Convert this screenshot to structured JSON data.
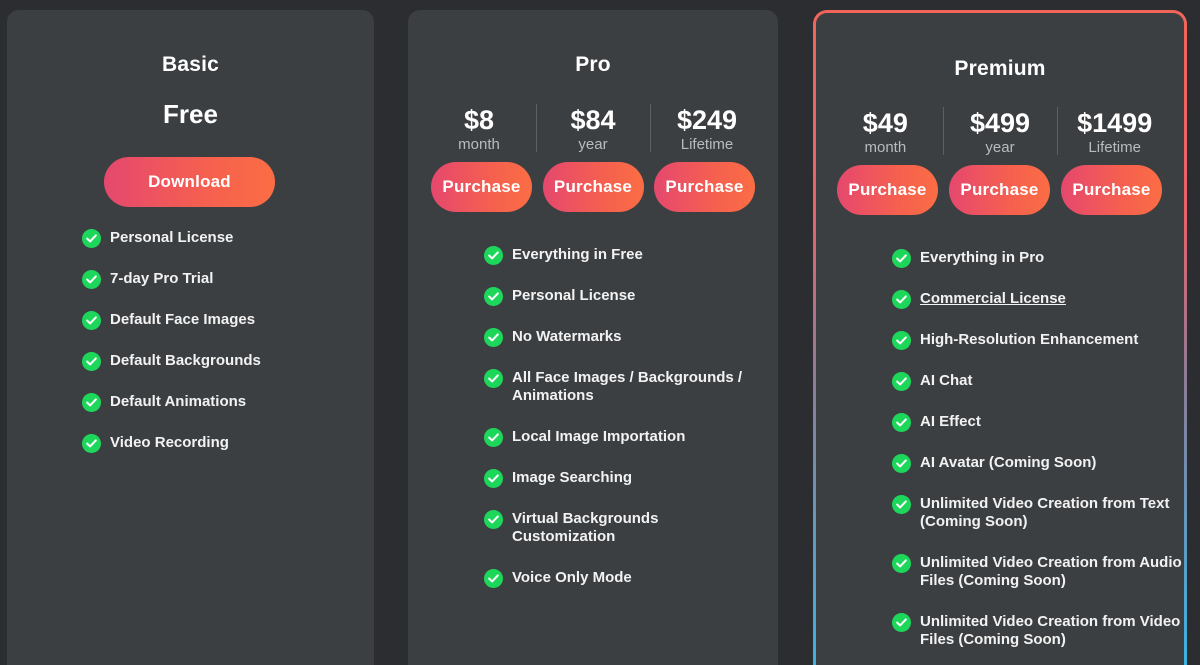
{
  "basic": {
    "title": "Basic",
    "price": "Free",
    "download_label": "Download",
    "features": [
      "Personal License",
      "7-day Pro Trial",
      "Default Face Images",
      "Default Backgrounds",
      "Default Animations",
      "Video Recording"
    ]
  },
  "pro": {
    "title": "Pro",
    "prices": [
      {
        "amount": "$8",
        "period": "month"
      },
      {
        "amount": "$84",
        "period": "year"
      },
      {
        "amount": "$249",
        "period": "Lifetime"
      }
    ],
    "purchase_label": "Purchase",
    "features": [
      "Everything in Free",
      "Personal License",
      "No Watermarks",
      "All Face Images / Backgrounds / Animations",
      "Local Image Importation",
      "Image Searching",
      "Virtual Backgrounds Customization",
      "Voice Only Mode"
    ]
  },
  "premium": {
    "title": "Premium",
    "prices": [
      {
        "amount": "$49",
        "period": "month"
      },
      {
        "amount": "$499",
        "period": "year"
      },
      {
        "amount": "$1499",
        "period": "Lifetime"
      }
    ],
    "purchase_label": "Purchase",
    "features": [
      "Everything in Pro",
      "Commercial License",
      "High-Resolution Enhancement",
      "AI Chat",
      "AI Effect",
      "AI Avatar (Coming Soon)",
      "Unlimited Video Creation from Text (Coming Soon)",
      "Unlimited Video Creation from Audio Files (Coming Soon)",
      "Unlimited Video Creation from Video Files (Coming Soon)"
    ]
  },
  "colors": {
    "background": "#2b2d30",
    "card": "#3c3f42",
    "check": "#1dd75b",
    "button_start": "#e5486e",
    "button_end": "#fb6d44",
    "premium_border_top": "#f2655a",
    "premium_border_bottom": "#34b7e9"
  },
  "icons": {
    "feature_check": "check-circle-icon"
  }
}
